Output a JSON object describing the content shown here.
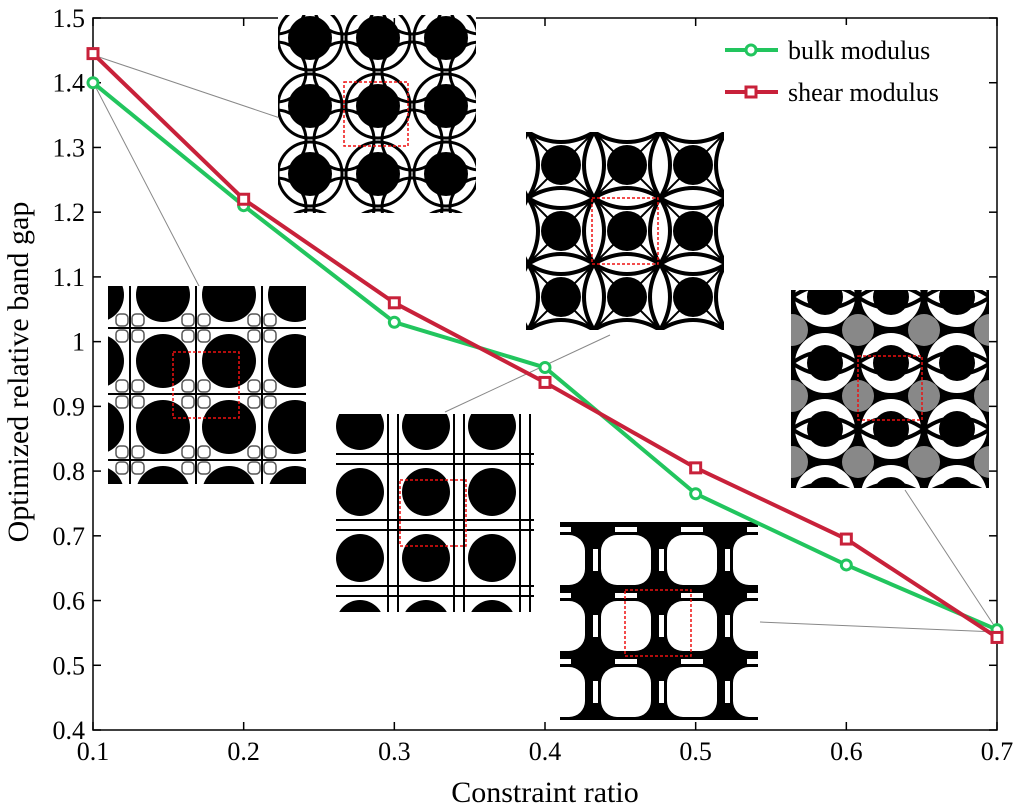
{
  "chart_data": {
    "type": "line",
    "title": "",
    "xlabel": "Constraint ratio",
    "ylabel": "Optimized relative band gap",
    "xlim": [
      0.1,
      0.7
    ],
    "ylim": [
      0.4,
      1.5
    ],
    "xticks": [
      "0.1",
      "0.2",
      "0.3",
      "0.4",
      "0.5",
      "0.6",
      "0.7"
    ],
    "yticks": [
      "0.4",
      "0.5",
      "0.6",
      "0.7",
      "0.8",
      "0.9",
      "1",
      "1.1",
      "1.2",
      "1.3",
      "1.4",
      "1.5"
    ],
    "grid": false,
    "legend_position": "top-right",
    "x": [
      0.1,
      0.2,
      0.3,
      0.4,
      0.5,
      0.6,
      0.7
    ],
    "series": [
      {
        "name": "bulk modulus",
        "color": "#22c55e",
        "marker": "circle",
        "values": [
          1.4,
          1.21,
          1.03,
          0.96,
          0.765,
          0.655,
          0.555
        ]
      },
      {
        "name": "shear modulus",
        "color": "#c8213a",
        "marker": "square",
        "values": [
          1.445,
          1.22,
          1.06,
          0.937,
          0.805,
          0.695,
          0.543
        ]
      }
    ],
    "annotations": [
      {
        "name": "inset-0.1-shear",
        "x": 0.1,
        "series": "shear modulus",
        "pattern": "circles-arcs"
      },
      {
        "name": "inset-0.1-bulk",
        "x": 0.1,
        "series": "bulk modulus",
        "pattern": "grid-circles"
      },
      {
        "name": "inset-0.4-upper",
        "x": 0.4,
        "series": "shear modulus",
        "pattern": "diamond-lattice"
      },
      {
        "name": "inset-0.4-lower",
        "x": 0.4,
        "series": "bulk modulus",
        "pattern": "bars-circles"
      },
      {
        "name": "inset-0.7-upper",
        "x": 0.7,
        "series": "bulk modulus",
        "pattern": "gray-lattice"
      },
      {
        "name": "inset-0.7-lower",
        "x": 0.7,
        "series": "bulk modulus",
        "pattern": "rounded-squares"
      }
    ]
  }
}
